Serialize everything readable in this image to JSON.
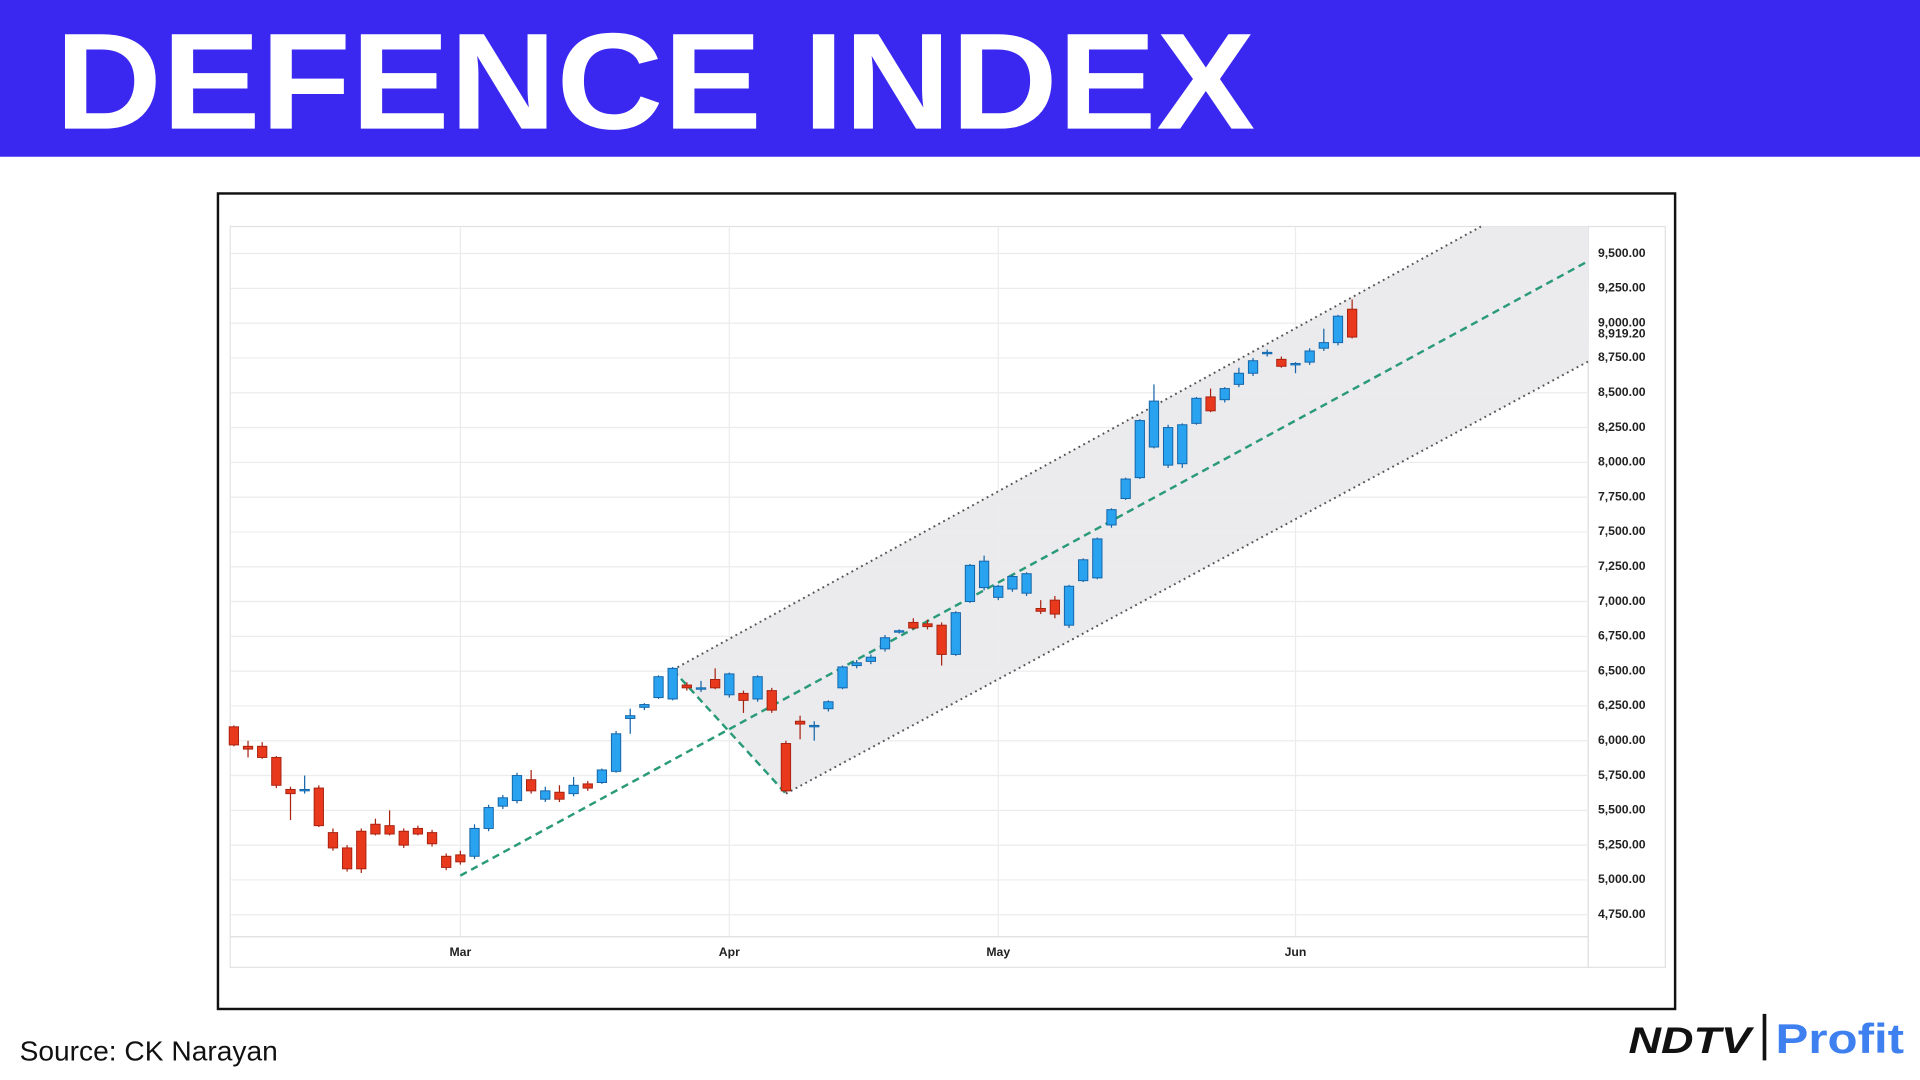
{
  "header": {
    "title": "DEFENCE INDEX"
  },
  "footer": {
    "source": "Source: CK Narayan",
    "logo_left": "NDTV",
    "logo_right": "Profit"
  },
  "chart_data": {
    "type": "candlestick",
    "categories": [
      null,
      null,
      null,
      null,
      null,
      null,
      null,
      null,
      null,
      null,
      null,
      null,
      null,
      null,
      null,
      null,
      "Mar",
      null,
      null,
      null,
      null,
      null,
      null,
      null,
      null,
      null,
      null,
      null,
      null,
      null,
      null,
      null,
      null,
      null,
      null,
      "Apr",
      null,
      null,
      null,
      null,
      null,
      null,
      null,
      null,
      null,
      null,
      null,
      null,
      null,
      null,
      null,
      null,
      null,
      null,
      "May",
      null,
      null,
      null,
      null,
      null,
      null,
      null,
      null,
      null,
      null,
      null,
      null,
      null,
      null,
      null,
      null,
      null,
      null,
      null,
      null,
      "Jun",
      null,
      null,
      null,
      null
    ],
    "open": [
      6100,
      5960,
      5960,
      5880,
      5650,
      5640,
      5660,
      5340,
      5230,
      5350,
      5400,
      5390,
      5350,
      5370,
      5340,
      5170,
      5180,
      5170,
      5370,
      5530,
      5570,
      5720,
      5580,
      5630,
      5620,
      5690,
      5700,
      5780,
      6160,
      6240,
      6310,
      6300,
      6400,
      6370,
      6440,
      6330,
      6340,
      6300,
      6360,
      5980,
      6140,
      6100,
      6230,
      6380,
      6540,
      6570,
      6660,
      6780,
      6850,
      6840,
      6830,
      6620,
      7000,
      7100,
      7030,
      7090,
      7060,
      6950,
      7010,
      6830,
      7150,
      7170,
      7550,
      7740,
      7890,
      8110,
      7980,
      7990,
      8280,
      8470,
      8450,
      8560,
      8640,
      8780,
      8740,
      8700,
      8720,
      8820,
      8860,
      9100
    ],
    "high": [
      6110,
      6000,
      5990,
      5890,
      5670,
      5750,
      5680,
      5370,
      5250,
      5370,
      5440,
      5500,
      5370,
      5390,
      5360,
      5190,
      5210,
      5400,
      5540,
      5610,
      5770,
      5790,
      5670,
      5680,
      5740,
      5710,
      5800,
      6070,
      6230,
      6270,
      6470,
      6530,
      6420,
      6430,
      6520,
      6490,
      6360,
      6470,
      6380,
      6000,
      6180,
      6140,
      6290,
      6540,
      6580,
      6620,
      6760,
      6800,
      6880,
      6870,
      6850,
      6930,
      7270,
      7330,
      7120,
      7190,
      7210,
      7010,
      7040,
      7120,
      7310,
      7460,
      7670,
      7890,
      8310,
      8560,
      8270,
      8280,
      8470,
      8530,
      8540,
      8680,
      8750,
      8810,
      8760,
      8720,
      8820,
      8960,
      9060,
      9170
    ],
    "low": [
      5960,
      5880,
      5870,
      5660,
      5430,
      5620,
      5380,
      5210,
      5060,
      5050,
      5320,
      5320,
      5230,
      5320,
      5240,
      5070,
      5110,
      5150,
      5350,
      5510,
      5550,
      5620,
      5560,
      5560,
      5600,
      5640,
      5690,
      5770,
      6050,
      6220,
      6300,
      6290,
      6360,
      6350,
      6370,
      6310,
      6200,
      6280,
      6200,
      5630,
      6010,
      6000,
      6210,
      6370,
      6520,
      6550,
      6640,
      6770,
      6800,
      6800,
      6540,
      6610,
      6990,
      7080,
      7010,
      7070,
      7040,
      6910,
      6880,
      6810,
      7140,
      7160,
      7530,
      7730,
      7880,
      8100,
      7960,
      7960,
      8270,
      8360,
      8430,
      8540,
      8620,
      8760,
      8680,
      8640,
      8700,
      8800,
      8840,
      8890
    ],
    "close": [
      5970,
      5940,
      5880,
      5680,
      5620,
      5650,
      5390,
      5230,
      5080,
      5080,
      5330,
      5330,
      5250,
      5330,
      5260,
      5090,
      5130,
      5370,
      5520,
      5590,
      5750,
      5640,
      5640,
      5580,
      5680,
      5660,
      5790,
      6050,
      6180,
      6260,
      6460,
      6520,
      6380,
      6380,
      6380,
      6480,
      6290,
      6460,
      6220,
      5640,
      6120,
      6110,
      6280,
      6530,
      6560,
      6600,
      6740,
      6790,
      6810,
      6820,
      6620,
      6920,
      7260,
      7290,
      7110,
      7180,
      7200,
      6930,
      6910,
      7110,
      7300,
      7450,
      7660,
      7880,
      8300,
      8440,
      8250,
      8270,
      8460,
      8370,
      8530,
      8640,
      8730,
      8790,
      8690,
      8710,
      8800,
      8860,
      9050,
      8900
    ],
    "up_color": "#29a3f0",
    "down_color": "#e8391d",
    "ylim": [
      4592,
      9694
    ],
    "yticks": [
      {
        "value": 4750,
        "label": "4,750.00"
      },
      {
        "value": 5000,
        "label": "5,000.00"
      },
      {
        "value": 5250,
        "label": "5,250.00"
      },
      {
        "value": 5500,
        "label": "5,500.00"
      },
      {
        "value": 5750,
        "label": "5,750.00"
      },
      {
        "value": 6000,
        "label": "6,000.00"
      },
      {
        "value": 6250,
        "label": "6,250.00"
      },
      {
        "value": 6500,
        "label": "6,500.00"
      },
      {
        "value": 6750,
        "label": "6,750.00"
      },
      {
        "value": 7000,
        "label": "7,000.00"
      },
      {
        "value": 7250,
        "label": "7,250.00"
      },
      {
        "value": 7500,
        "label": "7,500.00"
      },
      {
        "value": 7750,
        "label": "7,750.00"
      },
      {
        "value": 8000,
        "label": "8,000.00"
      },
      {
        "value": 8250,
        "label": "8,250.00"
      },
      {
        "value": 8500,
        "label": "8,500.00"
      },
      {
        "value": 8750,
        "label": "8,750.00"
      },
      {
        "value": 9000,
        "label": "9,000.00"
      },
      {
        "value": 9250,
        "label": "9,250.00"
      },
      {
        "value": 9500,
        "label": "9,500.00"
      }
    ],
    "last_price": {
      "value": 8919.2,
      "label": "8,919.20"
    },
    "grid": true,
    "trend_lines": [
      {
        "style": "dashed",
        "color": "#2a9a78",
        "x": [
          16,
          95.7
        ],
        "y": [
          5031,
          9447
        ]
      },
      {
        "style": "dashed",
        "color": "#2a9a78",
        "x": [
          31,
          39
        ],
        "y": [
          6510,
          5620
        ]
      },
      {
        "style": "dotted",
        "color": "#555555",
        "x": [
          31,
          88.1
        ],
        "y": [
          6509,
          9694
        ]
      },
      {
        "style": "dotted",
        "color": "#555555",
        "x": [
          39,
          95.7
        ],
        "y": [
          5620,
          8726
        ]
      }
    ],
    "channel_color": "#ebebee"
  }
}
